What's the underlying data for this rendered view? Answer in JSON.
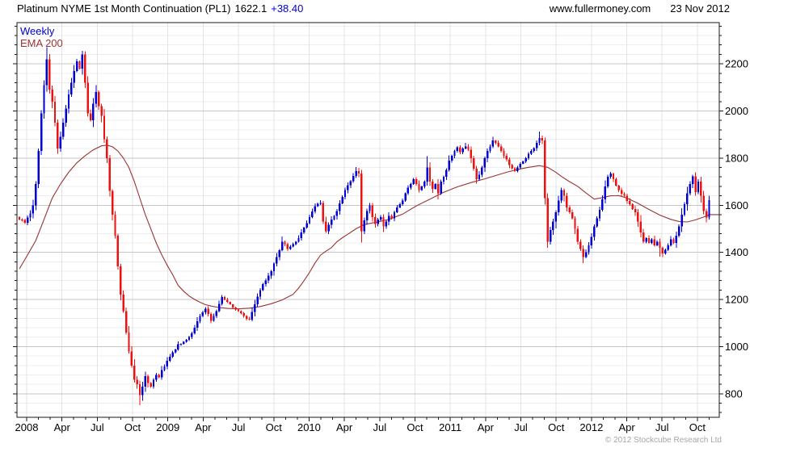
{
  "header": {
    "title": "Platinum NYME 1st Month Continuation (PL1)",
    "last_price": "1622.1",
    "change": "+38.40",
    "website": "www.fullermoney.com",
    "date": "23 Nov 2012"
  },
  "legend": {
    "timeframe": "Weekly",
    "indicator": "EMA 200"
  },
  "footer": {
    "copyright": "© 2012 Stockcube Research Ltd"
  },
  "chart_data": {
    "type": "candlestick",
    "title": "Platinum NYME 1st Month Continuation (PL1)",
    "timeframe": "Weekly",
    "indicator": "EMA 200",
    "last_close": 1622.1,
    "change": 38.4,
    "weeks": 253,
    "y_ticks": [
      800,
      1000,
      1200,
      1400,
      1600,
      1800,
      2000,
      2200
    ],
    "y_minor_step": 40,
    "y_domain": [
      700,
      2375
    ],
    "x_tick_labels": [
      "2008",
      "Apr",
      "Jul",
      "Oct",
      "2009",
      "Apr",
      "Jul",
      "Oct",
      "2010",
      "Apr",
      "Jul",
      "Oct",
      "2011",
      "Apr",
      "Jul",
      "Oct",
      "2012",
      "Apr",
      "Jul",
      "Oct"
    ],
    "months_per_tick": 3,
    "colors": {
      "up": "#0000d5",
      "down": "#ee1111",
      "ema": "#993333",
      "grid_minor": "#ededed",
      "grid_major": "#c6c6c6",
      "grid_vertical": "#e3e3e3",
      "axis": "#1a1a1a",
      "accent_blue": "#0000cc"
    },
    "close_anchors": [
      [
        0,
        1540
      ],
      [
        2,
        1525
      ],
      [
        4,
        1565
      ],
      [
        5,
        1600
      ],
      [
        6,
        1690
      ],
      [
        7,
        1830
      ],
      [
        8,
        1990
      ],
      [
        9,
        2110
      ],
      [
        10,
        2220
      ],
      [
        11,
        2090
      ],
      [
        12,
        2040
      ],
      [
        13,
        1950
      ],
      [
        14,
        1840
      ],
      [
        15,
        1890
      ],
      [
        16,
        1950
      ],
      [
        17,
        2010
      ],
      [
        18,
        2070
      ],
      [
        19,
        2120
      ],
      [
        20,
        2170
      ],
      [
        21,
        2210
      ],
      [
        22,
        2180
      ],
      [
        23,
        2240
      ],
      [
        24,
        2120
      ],
      [
        25,
        1990
      ],
      [
        26,
        1960
      ],
      [
        27,
        2030
      ],
      [
        28,
        2080
      ],
      [
        29,
        2020
      ],
      [
        30,
        1980
      ],
      [
        31,
        1880
      ],
      [
        32,
        1800
      ],
      [
        33,
        1660
      ],
      [
        34,
        1560
      ],
      [
        35,
        1470
      ],
      [
        36,
        1340
      ],
      [
        37,
        1220
      ],
      [
        38,
        1150
      ],
      [
        39,
        1060
      ],
      [
        40,
        980
      ],
      [
        41,
        920
      ],
      [
        42,
        860
      ],
      [
        43,
        840
      ],
      [
        44,
        795
      ],
      [
        45,
        830
      ],
      [
        46,
        875
      ],
      [
        47,
        845
      ],
      [
        48,
        830
      ],
      [
        49,
        860
      ],
      [
        50,
        880
      ],
      [
        51,
        870
      ],
      [
        52,
        900
      ],
      [
        54,
        940
      ],
      [
        56,
        975
      ],
      [
        58,
        1010
      ],
      [
        60,
        1020
      ],
      [
        62,
        1040
      ],
      [
        64,
        1080
      ],
      [
        66,
        1130
      ],
      [
        68,
        1160
      ],
      [
        70,
        1110
      ],
      [
        72,
        1150
      ],
      [
        74,
        1210
      ],
      [
        76,
        1190
      ],
      [
        78,
        1165
      ],
      [
        80,
        1150
      ],
      [
        82,
        1130
      ],
      [
        84,
        1115
      ],
      [
        86,
        1180
      ],
      [
        88,
        1240
      ],
      [
        90,
        1280
      ],
      [
        92,
        1320
      ],
      [
        94,
        1380
      ],
      [
        96,
        1445
      ],
      [
        98,
        1415
      ],
      [
        100,
        1435
      ],
      [
        102,
        1460
      ],
      [
        104,
        1505
      ],
      [
        106,
        1550
      ],
      [
        108,
        1595
      ],
      [
        110,
        1610
      ],
      [
        111,
        1530
      ],
      [
        112,
        1490
      ],
      [
        114,
        1540
      ],
      [
        116,
        1575
      ],
      [
        118,
        1635
      ],
      [
        120,
        1685
      ],
      [
        122,
        1725
      ],
      [
        123,
        1745
      ],
      [
        124,
        1735
      ],
      [
        125,
        1490
      ],
      [
        126,
        1535
      ],
      [
        127,
        1575
      ],
      [
        128,
        1600
      ],
      [
        129,
        1550
      ],
      [
        130,
        1520
      ],
      [
        131,
        1540
      ],
      [
        132,
        1550
      ],
      [
        133,
        1510
      ],
      [
        134,
        1530
      ],
      [
        135,
        1555
      ],
      [
        136,
        1545
      ],
      [
        137,
        1570
      ],
      [
        138,
        1590
      ],
      [
        139,
        1605
      ],
      [
        140,
        1620
      ],
      [
        141,
        1650
      ],
      [
        142,
        1675
      ],
      [
        143,
        1690
      ],
      [
        144,
        1710
      ],
      [
        145,
        1690
      ],
      [
        146,
        1665
      ],
      [
        147,
        1680
      ],
      [
        148,
        1700
      ],
      [
        149,
        1760
      ],
      [
        150,
        1700
      ],
      [
        151,
        1670
      ],
      [
        152,
        1690
      ],
      [
        153,
        1650
      ],
      [
        154,
        1700
      ],
      [
        155,
        1720
      ],
      [
        156,
        1750
      ],
      [
        157,
        1790
      ],
      [
        158,
        1810
      ],
      [
        159,
        1830
      ],
      [
        160,
        1845
      ],
      [
        161,
        1825
      ],
      [
        162,
        1840
      ],
      [
        163,
        1850
      ],
      [
        164,
        1835
      ],
      [
        165,
        1800
      ],
      [
        166,
        1755
      ],
      [
        167,
        1710
      ],
      [
        168,
        1730
      ],
      [
        169,
        1760
      ],
      [
        170,
        1800
      ],
      [
        171,
        1830
      ],
      [
        172,
        1850
      ],
      [
        173,
        1875
      ],
      [
        175,
        1850
      ],
      [
        177,
        1810
      ],
      [
        179,
        1770
      ],
      [
        181,
        1745
      ],
      [
        183,
        1775
      ],
      [
        185,
        1800
      ],
      [
        187,
        1830
      ],
      [
        189,
        1865
      ],
      [
        190,
        1885
      ],
      [
        191,
        1875
      ],
      [
        192,
        1630
      ],
      [
        193,
        1445
      ],
      [
        194,
        1495
      ],
      [
        195,
        1530
      ],
      [
        196,
        1570
      ],
      [
        197,
        1620
      ],
      [
        198,
        1665
      ],
      [
        199,
        1640
      ],
      [
        200,
        1590
      ],
      [
        201,
        1570
      ],
      [
        202,
        1545
      ],
      [
        203,
        1500
      ],
      [
        204,
        1445
      ],
      [
        205,
        1415
      ],
      [
        206,
        1380
      ],
      [
        207,
        1400
      ],
      [
        208,
        1430
      ],
      [
        209,
        1465
      ],
      [
        210,
        1510
      ],
      [
        211,
        1545
      ],
      [
        212,
        1580
      ],
      [
        213,
        1625
      ],
      [
        214,
        1680
      ],
      [
        215,
        1720
      ],
      [
        216,
        1735
      ],
      [
        217,
        1710
      ],
      [
        219,
        1665
      ],
      [
        221,
        1640
      ],
      [
        223,
        1605
      ],
      [
        225,
        1570
      ],
      [
        226,
        1530
      ],
      [
        227,
        1485
      ],
      [
        228,
        1445
      ],
      [
        229,
        1460
      ],
      [
        230,
        1440
      ],
      [
        231,
        1455
      ],
      [
        232,
        1430
      ],
      [
        233,
        1445
      ],
      [
        234,
        1420
      ],
      [
        235,
        1395
      ],
      [
        236,
        1410
      ],
      [
        237,
        1430
      ],
      [
        238,
        1455
      ],
      [
        239,
        1440
      ],
      [
        240,
        1470
      ],
      [
        241,
        1510
      ],
      [
        242,
        1560
      ],
      [
        243,
        1605
      ],
      [
        244,
        1650
      ],
      [
        245,
        1690
      ],
      [
        246,
        1722
      ],
      [
        247,
        1655
      ],
      [
        248,
        1700
      ],
      [
        249,
        1640
      ],
      [
        250,
        1575
      ],
      [
        251,
        1548
      ],
      [
        252,
        1622.1
      ]
    ],
    "ema_anchors": [
      [
        0,
        1330
      ],
      [
        3,
        1390
      ],
      [
        6,
        1450
      ],
      [
        9,
        1540
      ],
      [
        12,
        1630
      ],
      [
        15,
        1690
      ],
      [
        18,
        1740
      ],
      [
        21,
        1780
      ],
      [
        24,
        1810
      ],
      [
        27,
        1835
      ],
      [
        30,
        1852
      ],
      [
        32,
        1855
      ],
      [
        34,
        1848
      ],
      [
        36,
        1830
      ],
      [
        38,
        1800
      ],
      [
        40,
        1760
      ],
      [
        42,
        1700
      ],
      [
        44,
        1630
      ],
      [
        46,
        1560
      ],
      [
        48,
        1500
      ],
      [
        50,
        1440
      ],
      [
        52,
        1390
      ],
      [
        54,
        1345
      ],
      [
        56,
        1305
      ],
      [
        58,
        1260
      ],
      [
        60,
        1235
      ],
      [
        62,
        1215
      ],
      [
        64,
        1200
      ],
      [
        66,
        1188
      ],
      [
        68,
        1178
      ],
      [
        70,
        1172
      ],
      [
        73,
        1166
      ],
      [
        76,
        1162
      ],
      [
        80,
        1160
      ],
      [
        84,
        1163
      ],
      [
        88,
        1170
      ],
      [
        92,
        1182
      ],
      [
        96,
        1198
      ],
      [
        100,
        1222
      ],
      [
        102,
        1248
      ],
      [
        104,
        1280
      ],
      [
        106,
        1315
      ],
      [
        108,
        1355
      ],
      [
        110,
        1388
      ],
      [
        112,
        1405
      ],
      [
        114,
        1420
      ],
      [
        116,
        1445
      ],
      [
        118,
        1462
      ],
      [
        120,
        1477
      ],
      [
        123,
        1500
      ],
      [
        126,
        1518
      ],
      [
        130,
        1527
      ],
      [
        135,
        1540
      ],
      [
        140,
        1562
      ],
      [
        145,
        1597
      ],
      [
        150,
        1626
      ],
      [
        155,
        1655
      ],
      [
        160,
        1678
      ],
      [
        165,
        1696
      ],
      [
        170,
        1712
      ],
      [
        174,
        1726
      ],
      [
        178,
        1740
      ],
      [
        182,
        1752
      ],
      [
        186,
        1761
      ],
      [
        190,
        1768
      ],
      [
        193,
        1761
      ],
      [
        196,
        1740
      ],
      [
        198,
        1722
      ],
      [
        201,
        1700
      ],
      [
        204,
        1680
      ],
      [
        207,
        1652
      ],
      [
        210,
        1626
      ],
      [
        213,
        1632
      ],
      [
        216,
        1640
      ],
      [
        219,
        1641
      ],
      [
        222,
        1630
      ],
      [
        226,
        1608
      ],
      [
        230,
        1582
      ],
      [
        234,
        1558
      ],
      [
        238,
        1540
      ],
      [
        241,
        1531
      ],
      [
        244,
        1529
      ],
      [
        247,
        1538
      ],
      [
        250,
        1550
      ],
      [
        252,
        1560
      ]
    ],
    "extremes": [
      [
        10,
        "high",
        2270
      ],
      [
        23,
        "high",
        2255
      ],
      [
        44,
        "low",
        752
      ],
      [
        123,
        "high",
        1762
      ],
      [
        125,
        "low",
        1442
      ],
      [
        149,
        "high",
        1808
      ],
      [
        163,
        "high",
        1865
      ],
      [
        173,
        "high",
        1890
      ],
      [
        190,
        "high",
        1912
      ],
      [
        193,
        "low",
        1420
      ],
      [
        206,
        "low",
        1355
      ],
      [
        216,
        "high",
        1742
      ],
      [
        234,
        "low",
        1382
      ],
      [
        246,
        "high",
        1730
      ],
      [
        251,
        "low",
        1527
      ],
      [
        252,
        "high",
        1640
      ]
    ]
  }
}
